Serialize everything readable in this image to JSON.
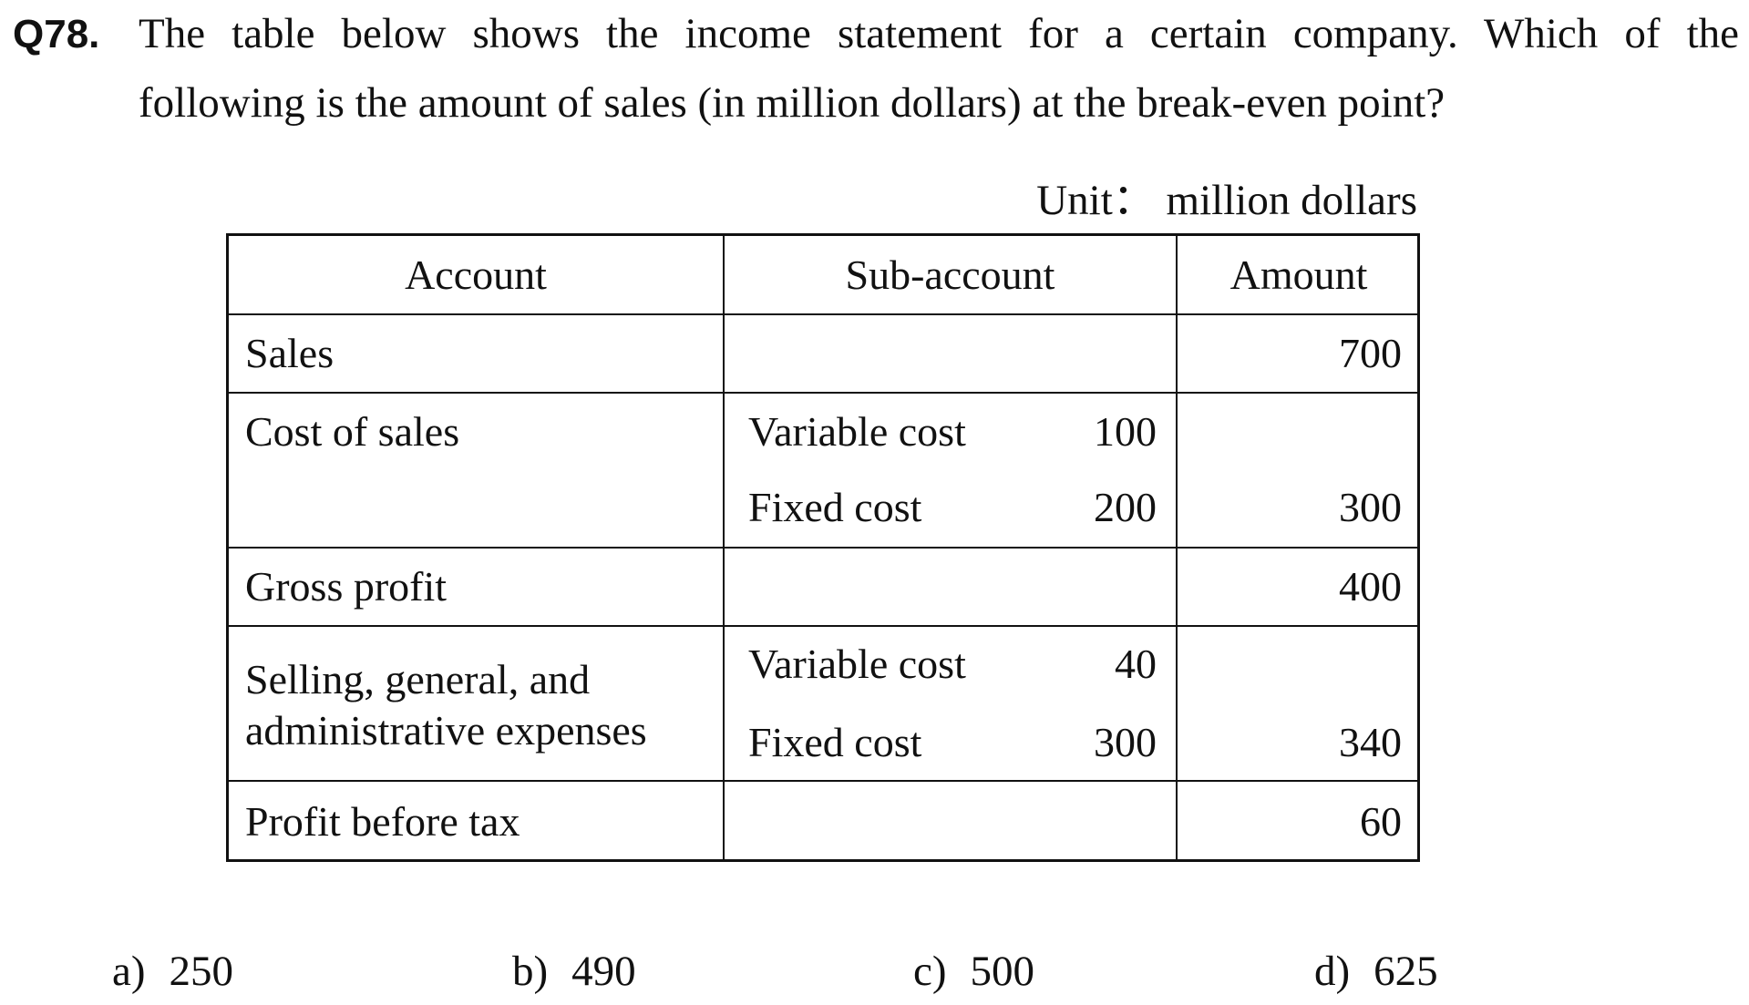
{
  "question": {
    "number": "Q78.",
    "line1": "The table below shows the income statement for a certain company.  Which of the",
    "line2": "following is the amount of sales (in million dollars) at the break-even point?"
  },
  "unit_label": "Unit： million dollars",
  "table": {
    "headers": [
      "Account",
      "Sub-account",
      "Amount"
    ],
    "rows": [
      {
        "account": "Sales",
        "amount": "700"
      },
      {
        "account": "Cost of sales",
        "sub": [
          {
            "label": "Variable cost",
            "value": "100"
          },
          {
            "label": "Fixed cost",
            "value": "200"
          }
        ],
        "amount": "300"
      },
      {
        "account": "Gross profit",
        "amount": "400"
      },
      {
        "account_lines": [
          "Selling, general, and",
          "administrative expenses"
        ],
        "sub": [
          {
            "label": "Variable cost",
            "value": "40"
          },
          {
            "label": "Fixed cost",
            "value": "300"
          }
        ],
        "amount": "340"
      },
      {
        "account": "Profit before tax",
        "amount": "60"
      }
    ]
  },
  "options": [
    {
      "letter": "a)",
      "value": "250"
    },
    {
      "letter": "b)",
      "value": "490"
    },
    {
      "letter": "c)",
      "value": "500"
    },
    {
      "letter": "d)",
      "value": "625"
    }
  ]
}
